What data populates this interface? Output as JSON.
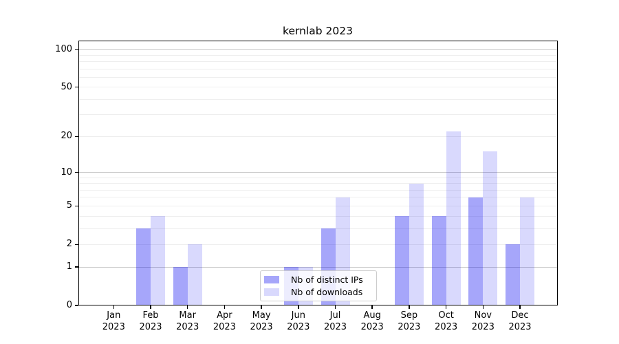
{
  "chart_data": {
    "type": "bar",
    "title": "kernlab 2023",
    "categories": [
      "Jan",
      "Feb",
      "Mar",
      "Apr",
      "May",
      "Jun",
      "Jul",
      "Aug",
      "Sep",
      "Oct",
      "Nov",
      "Dec"
    ],
    "category_year": "2023",
    "series": [
      {
        "name": "Nb of distinct IPs",
        "color": "rgba(0,0,240,0.35)",
        "color_hex": "#a6a6fa",
        "values": [
          0,
          3,
          1,
          0,
          0,
          1,
          3,
          0,
          4,
          4,
          6,
          2
        ]
      },
      {
        "name": "Nb of downloads",
        "color": "rgba(0,0,240,0.15)",
        "color_hex": "#d9d9fd",
        "values": [
          0,
          4,
          2,
          0,
          0,
          1,
          6,
          0,
          8,
          22,
          15,
          6
        ]
      }
    ],
    "xlabel": "",
    "ylabel": "",
    "scale": "log1p",
    "ylim": [
      0,
      116
    ],
    "yticks": [
      0,
      1,
      2,
      5,
      10,
      20,
      50,
      100
    ],
    "grid_major": [
      1,
      10,
      100
    ],
    "grid_minor": [
      2,
      3,
      4,
      5,
      6,
      7,
      8,
      9,
      20,
      30,
      40,
      50,
      60,
      70,
      80,
      90
    ],
    "grid": true,
    "legend_position": "lower center inside"
  }
}
